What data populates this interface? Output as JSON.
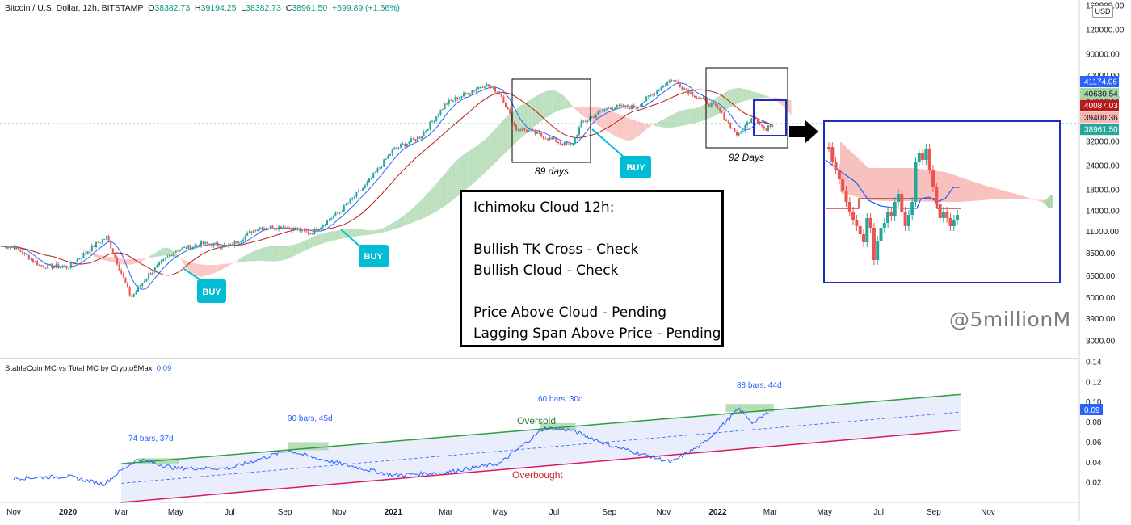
{
  "header": {
    "symbol_text": "Bitcoin / U.S. Dollar, 12h, BITSTAMP",
    "open_label": "O",
    "open": "38382.73",
    "high_label": "H",
    "high": "39194.25",
    "low_label": "L",
    "low": "38382.73",
    "close_label": "C",
    "close": "38961.50",
    "change": "+599.89 (+1.56%)"
  },
  "price_axis": {
    "currency": "USD",
    "ticks": [
      "160000.00",
      "120000.00",
      "90000.00",
      "70000.00",
      "54000.00",
      "32000.00",
      "24000.00",
      "18000.00",
      "14000.00",
      "11000.00",
      "8500.00",
      "6500.00",
      "5000.00",
      "3900.00",
      "3000.00"
    ],
    "badges": [
      {
        "value": "41174.06",
        "color": "#2962ff"
      },
      {
        "value": "40630.54",
        "color": "#a5d6a7"
      },
      {
        "value": "40087.03",
        "color": "#b71c1c"
      },
      {
        "value": "39400.36",
        "color": "#f7b6b2"
      },
      {
        "value": "38961.50",
        "color": "#26a69a"
      }
    ]
  },
  "annotations": {
    "buy_labels": [
      "BUY",
      "BUY",
      "BUY"
    ],
    "box1_label": "89 days",
    "box2_label": "92 Days",
    "note_lines": [
      "Ichimoku Cloud 12h:",
      "",
      "Bullish TK Cross - Check",
      "Bullish Cloud - Check",
      "",
      "Price Above Cloud - Pending",
      "Lagging Span Above Price - Pending"
    ],
    "watermark": "@5millionM"
  },
  "indicator": {
    "title": "StableCoin MC vs Total MC by Crypto5Max",
    "value": "0.09",
    "ticks": [
      "0.14",
      "0.12",
      "0.10",
      "0.08",
      "0.06",
      "0.04",
      "0.02"
    ],
    "badge": "0.09",
    "period_labels": [
      "74 bars, 37d",
      "90 bars, 45d",
      "60 bars, 30d",
      "88 bars, 44d"
    ],
    "oversold_label": "Oversold",
    "overbought_label": "Overbought"
  },
  "time_axis": [
    "Nov",
    "2020",
    "Mar",
    "May",
    "Jul",
    "Sep",
    "Nov",
    "2021",
    "Mar",
    "May",
    "Jul",
    "Sep",
    "Nov",
    "2022",
    "Mar",
    "May",
    "Jul",
    "Sep",
    "Nov"
  ],
  "colors": {
    "up": "#26a69a",
    "down": "#ef5350",
    "cloud_bull": "#a5d6a7",
    "cloud_bear": "#f7b6b2",
    "tenkan": "#2962ff",
    "kijun": "#b71c1c",
    "buy": "#00bcd4",
    "channel_top": "#2e9e3f",
    "channel_bottom": "#d81b60",
    "channel_fill": "#e8ecfc",
    "stable_line": "#2962ff"
  },
  "chart_data": [
    {
      "type": "candlestick",
      "title": "Bitcoin / U.S. Dollar, 12h, BITSTAMP",
      "scale": "log",
      "ylim": [
        3000,
        160000
      ],
      "series": [
        {
          "name": "BTCUSD close",
          "points": [
            [
              "2019-11-01",
              9200
            ],
            [
              "2019-12-01",
              7300
            ],
            [
              "2020-01-01",
              7200
            ],
            [
              "2020-02-01",
              9400
            ],
            [
              "2020-02-14",
              10300
            ],
            [
              "2020-03-12",
              5000
            ],
            [
              "2020-04-01",
              6600
            ],
            [
              "2020-05-01",
              8800
            ],
            [
              "2020-06-01",
              9500
            ],
            [
              "2020-07-01",
              9200
            ],
            [
              "2020-08-01",
              11500
            ],
            [
              "2020-09-01",
              11600
            ],
            [
              "2020-10-01",
              10800
            ],
            [
              "2020-11-01",
              13800
            ],
            [
              "2020-12-01",
              19000
            ],
            [
              "2021-01-01",
              29000
            ],
            [
              "2021-02-01",
              34000
            ],
            [
              "2021-03-01",
              50000
            ],
            [
              "2021-04-14",
              63000
            ],
            [
              "2021-05-01",
              57000
            ],
            [
              "2021-05-19",
              37000
            ],
            [
              "2021-06-01",
              36500
            ],
            [
              "2021-07-20",
              30000
            ],
            [
              "2021-08-01",
              40000
            ],
            [
              "2021-09-01",
              48000
            ],
            [
              "2021-10-01",
              48000
            ],
            [
              "2021-11-10",
              67000
            ],
            [
              "2021-12-01",
              57000
            ],
            [
              "2022-01-01",
              47000
            ],
            [
              "2022-01-24",
              34000
            ],
            [
              "2022-02-10",
              44000
            ],
            [
              "2022-02-24",
              36000
            ],
            [
              "2022-03-01",
              39000
            ]
          ]
        }
      ]
    },
    {
      "type": "line",
      "title": "StableCoin MC vs Total MC by Crypto5Max",
      "ylim": [
        0.0,
        0.14
      ],
      "series": [
        {
          "name": "StableCoin MC vs Total MC",
          "points": [
            [
              "2019-11-01",
              0.024
            ],
            [
              "2020-01-01",
              0.026
            ],
            [
              "2020-02-10",
              0.018
            ],
            [
              "2020-03-01",
              0.032
            ],
            [
              "2020-03-20",
              0.043
            ],
            [
              "2020-05-01",
              0.034
            ],
            [
              "2020-07-01",
              0.034
            ],
            [
              "2020-09-05",
              0.052
            ],
            [
              "2020-10-01",
              0.045
            ],
            [
              "2020-12-01",
              0.033
            ],
            [
              "2021-01-01",
              0.027
            ],
            [
              "2021-03-01",
              0.03
            ],
            [
              "2021-05-01",
              0.039
            ],
            [
              "2021-06-20",
              0.074
            ],
            [
              "2021-07-20",
              0.072
            ],
            [
              "2021-09-01",
              0.057
            ],
            [
              "2021-11-10",
              0.04
            ],
            [
              "2021-12-15",
              0.058
            ],
            [
              "2022-01-25",
              0.093
            ],
            [
              "2022-02-10",
              0.079
            ],
            [
              "2022-03-01",
              0.091
            ]
          ]
        }
      ]
    }
  ]
}
